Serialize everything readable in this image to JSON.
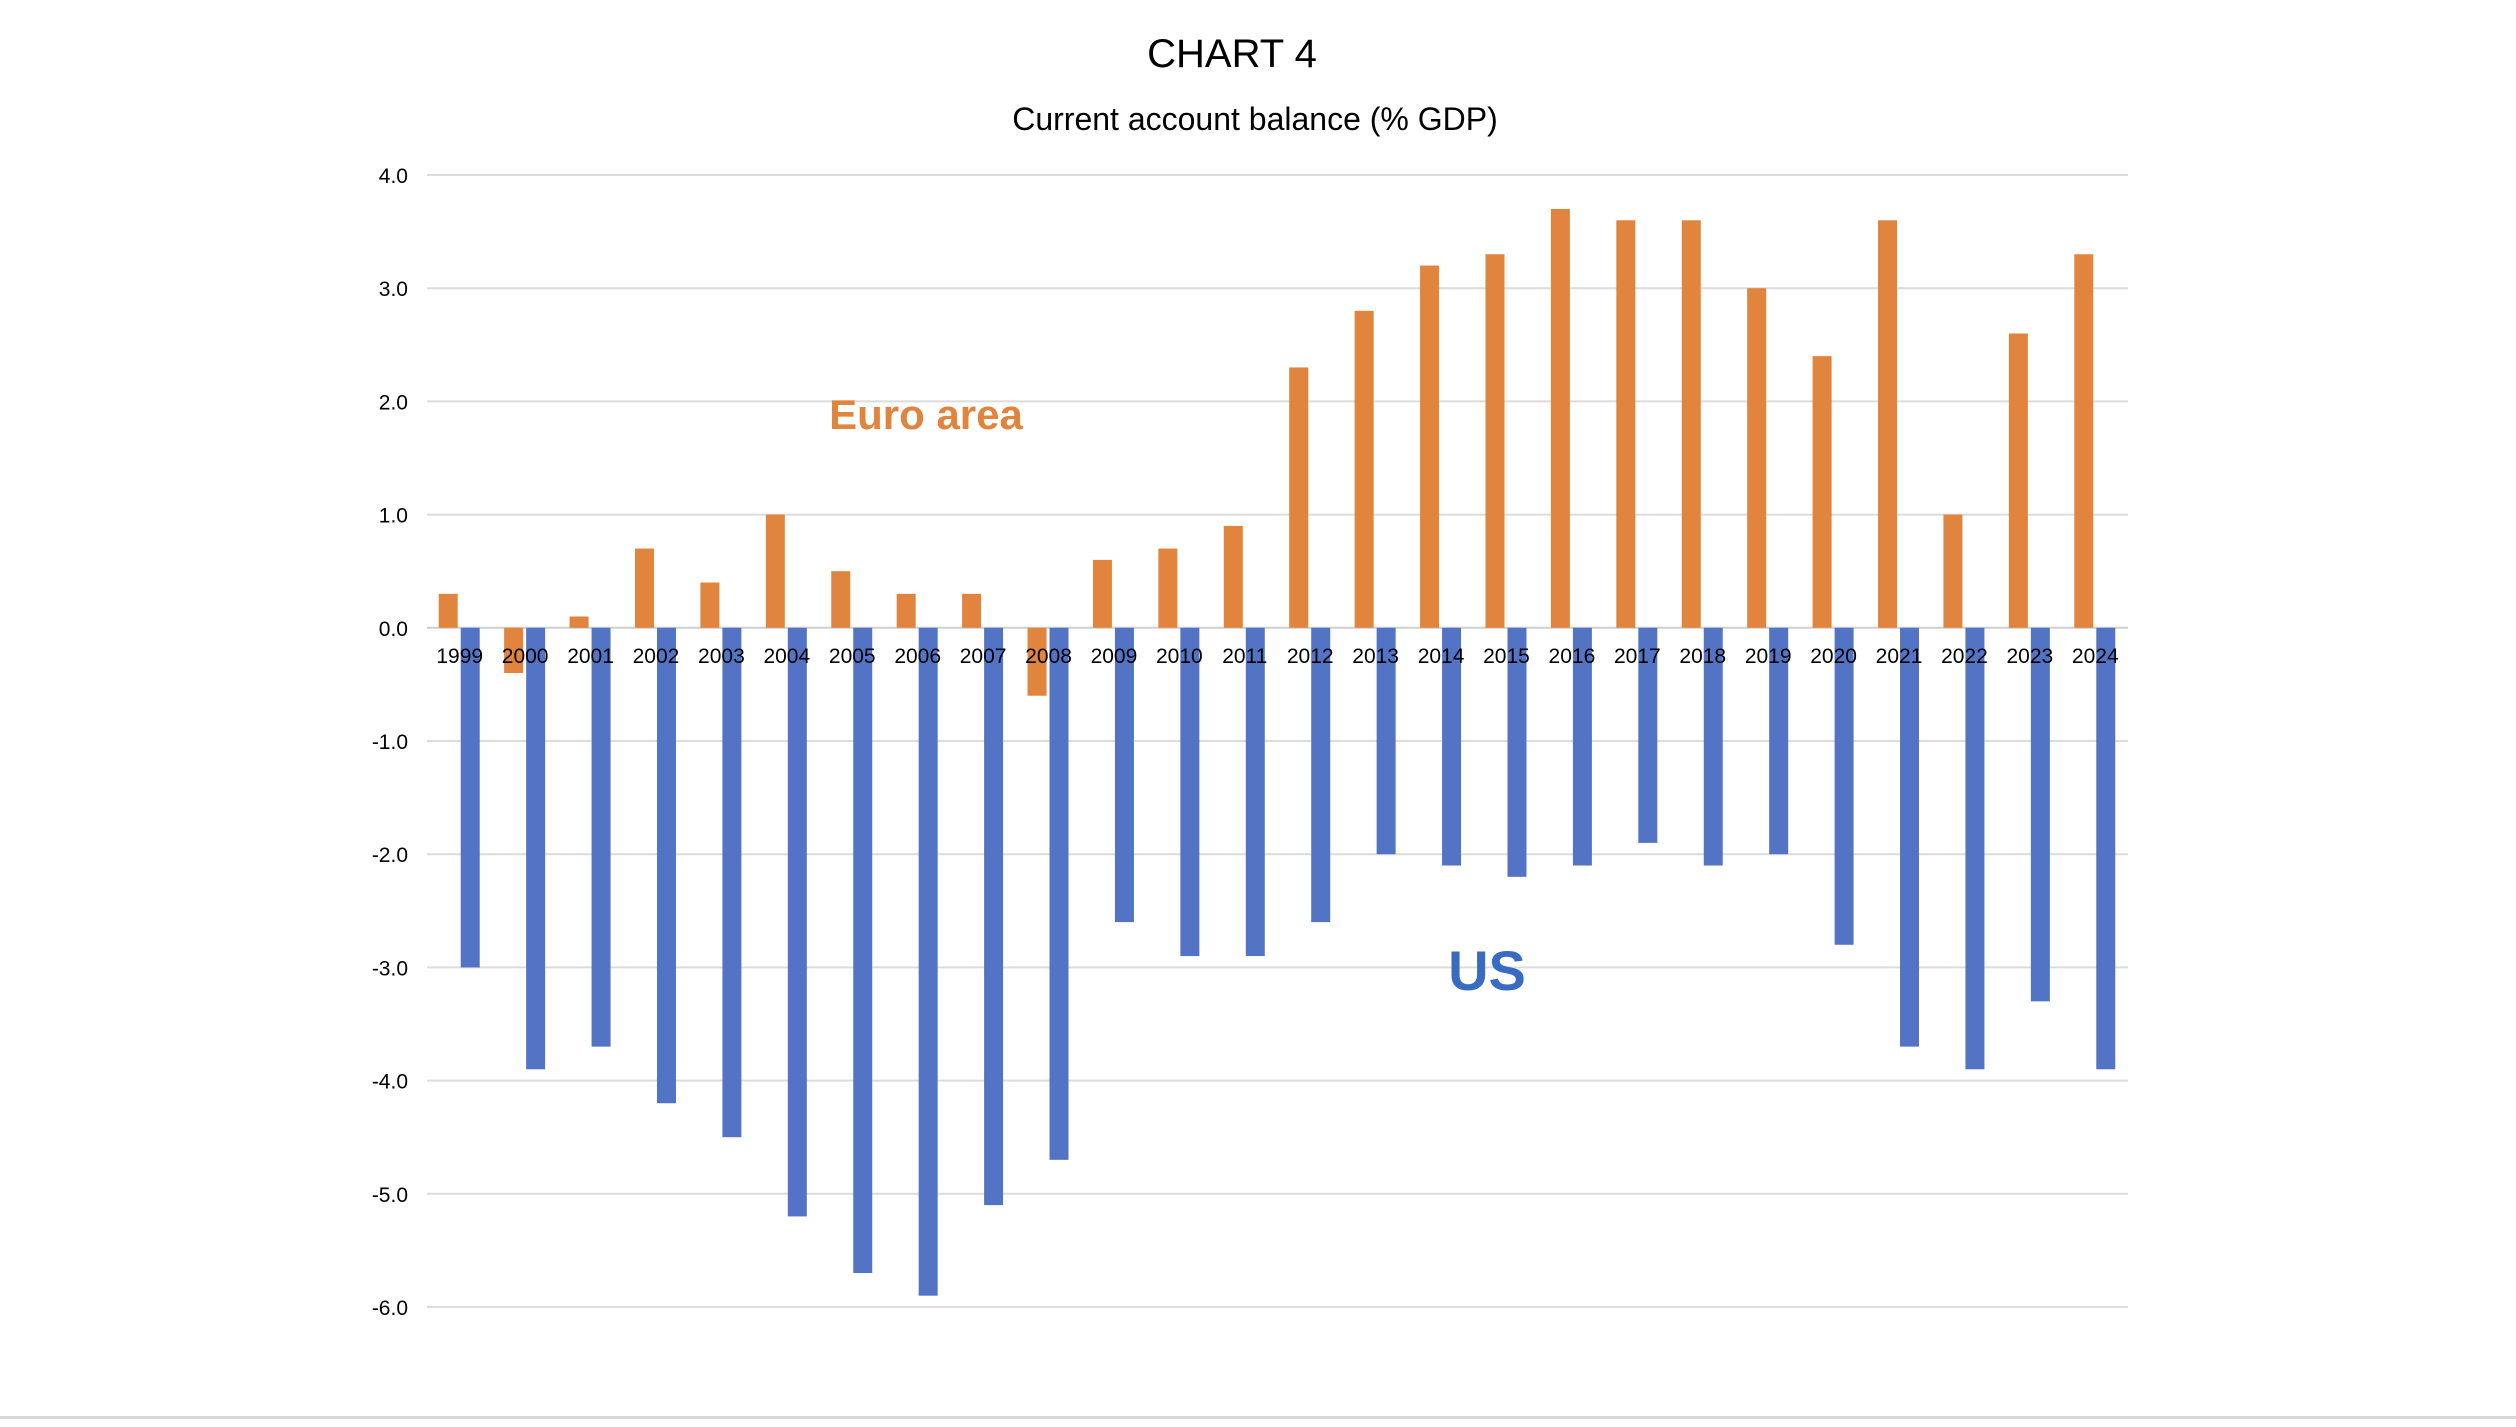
{
  "chart_data": {
    "type": "bar",
    "title": "CHART 4",
    "subtitle": "Current account balance (% GDP)",
    "xlabel": "",
    "ylabel": "",
    "ylim": [
      -6.0,
      4.0
    ],
    "yticks": [
      "4.0",
      "3.0",
      "2.0",
      "1.0",
      "0.0",
      "-1.0",
      "-2.0",
      "-3.0",
      "-4.0",
      "-5.0",
      "-6.0"
    ],
    "grid": true,
    "legend": "inline labels",
    "categories": [
      "1999",
      "2000",
      "2001",
      "2002",
      "2003",
      "2004",
      "2005",
      "2006",
      "2007",
      "2008",
      "2009",
      "2010",
      "2011",
      "2012",
      "2013",
      "2014",
      "2015",
      "2016",
      "2017",
      "2018",
      "2019",
      "2020",
      "2021",
      "2022",
      "2023",
      "2024"
    ],
    "series": [
      {
        "name": "Euro area",
        "color": "#E0843E",
        "values": [
          0.3,
          -0.4,
          0.1,
          0.7,
          0.4,
          1.0,
          0.5,
          0.3,
          0.3,
          -0.6,
          0.6,
          0.7,
          0.9,
          2.3,
          2.8,
          3.2,
          3.3,
          3.7,
          3.6,
          3.6,
          3.0,
          2.4,
          3.6,
          1.0,
          2.6,
          3.3
        ]
      },
      {
        "name": "US",
        "color": "#5374C4",
        "values": [
          -3.0,
          -3.9,
          -3.7,
          -4.2,
          -4.5,
          -5.2,
          -5.7,
          -5.9,
          -5.1,
          -4.7,
          -2.6,
          -2.9,
          -2.9,
          -2.6,
          -2.0,
          -2.1,
          -2.2,
          -2.1,
          -1.9,
          -2.1,
          -2.0,
          -2.8,
          -3.7,
          -3.9,
          -3.3,
          -3.9
        ]
      }
    ],
    "annotations": [
      {
        "text": "Euro area",
        "color": "#E0843E"
      },
      {
        "text": "US",
        "color": "#3A6BC2"
      }
    ]
  }
}
